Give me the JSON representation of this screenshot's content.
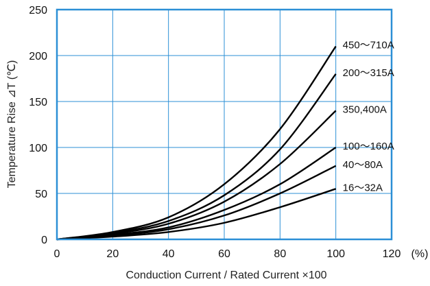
{
  "chart_data": {
    "type": "line",
    "title": "",
    "xlabel": "Conduction Current / Rated  Current ×100",
    "ylabel": "Temperature Rise ⊿T (℃)",
    "x_unit": "(%)",
    "xlim": [
      0,
      120
    ],
    "ylim": [
      0,
      250
    ],
    "x_ticks": [
      "0",
      "20",
      "40",
      "60",
      "80",
      "100",
      "120"
    ],
    "y_ticks": [
      "0",
      "50",
      "100",
      "150",
      "200",
      "250"
    ],
    "grid": true,
    "legend": "inline labels at right end of curves",
    "colors": {
      "frame": "#2b8fd6",
      "grid": "#2b8fd6",
      "line": "#000000"
    },
    "x": [
      0,
      20,
      40,
      60,
      80,
      100
    ],
    "series": [
      {
        "name": "450～710A",
        "values": [
          0,
          8,
          24,
          60,
          120,
          210
        ]
      },
      {
        "name": "200～315A",
        "values": [
          0,
          7,
          20,
          48,
          98,
          180
        ]
      },
      {
        "name": "350,400A",
        "values": [
          0,
          6,
          17,
          41,
          82,
          140
        ]
      },
      {
        "name": "100～160A",
        "values": [
          0,
          5,
          13,
          32,
          60,
          100
        ]
      },
      {
        "name": "40～80A",
        "values": [
          0,
          4,
          11,
          26,
          50,
          80
        ]
      },
      {
        "name": "16～32A",
        "values": [
          0,
          3,
          8,
          18,
          35,
          55
        ]
      }
    ]
  }
}
